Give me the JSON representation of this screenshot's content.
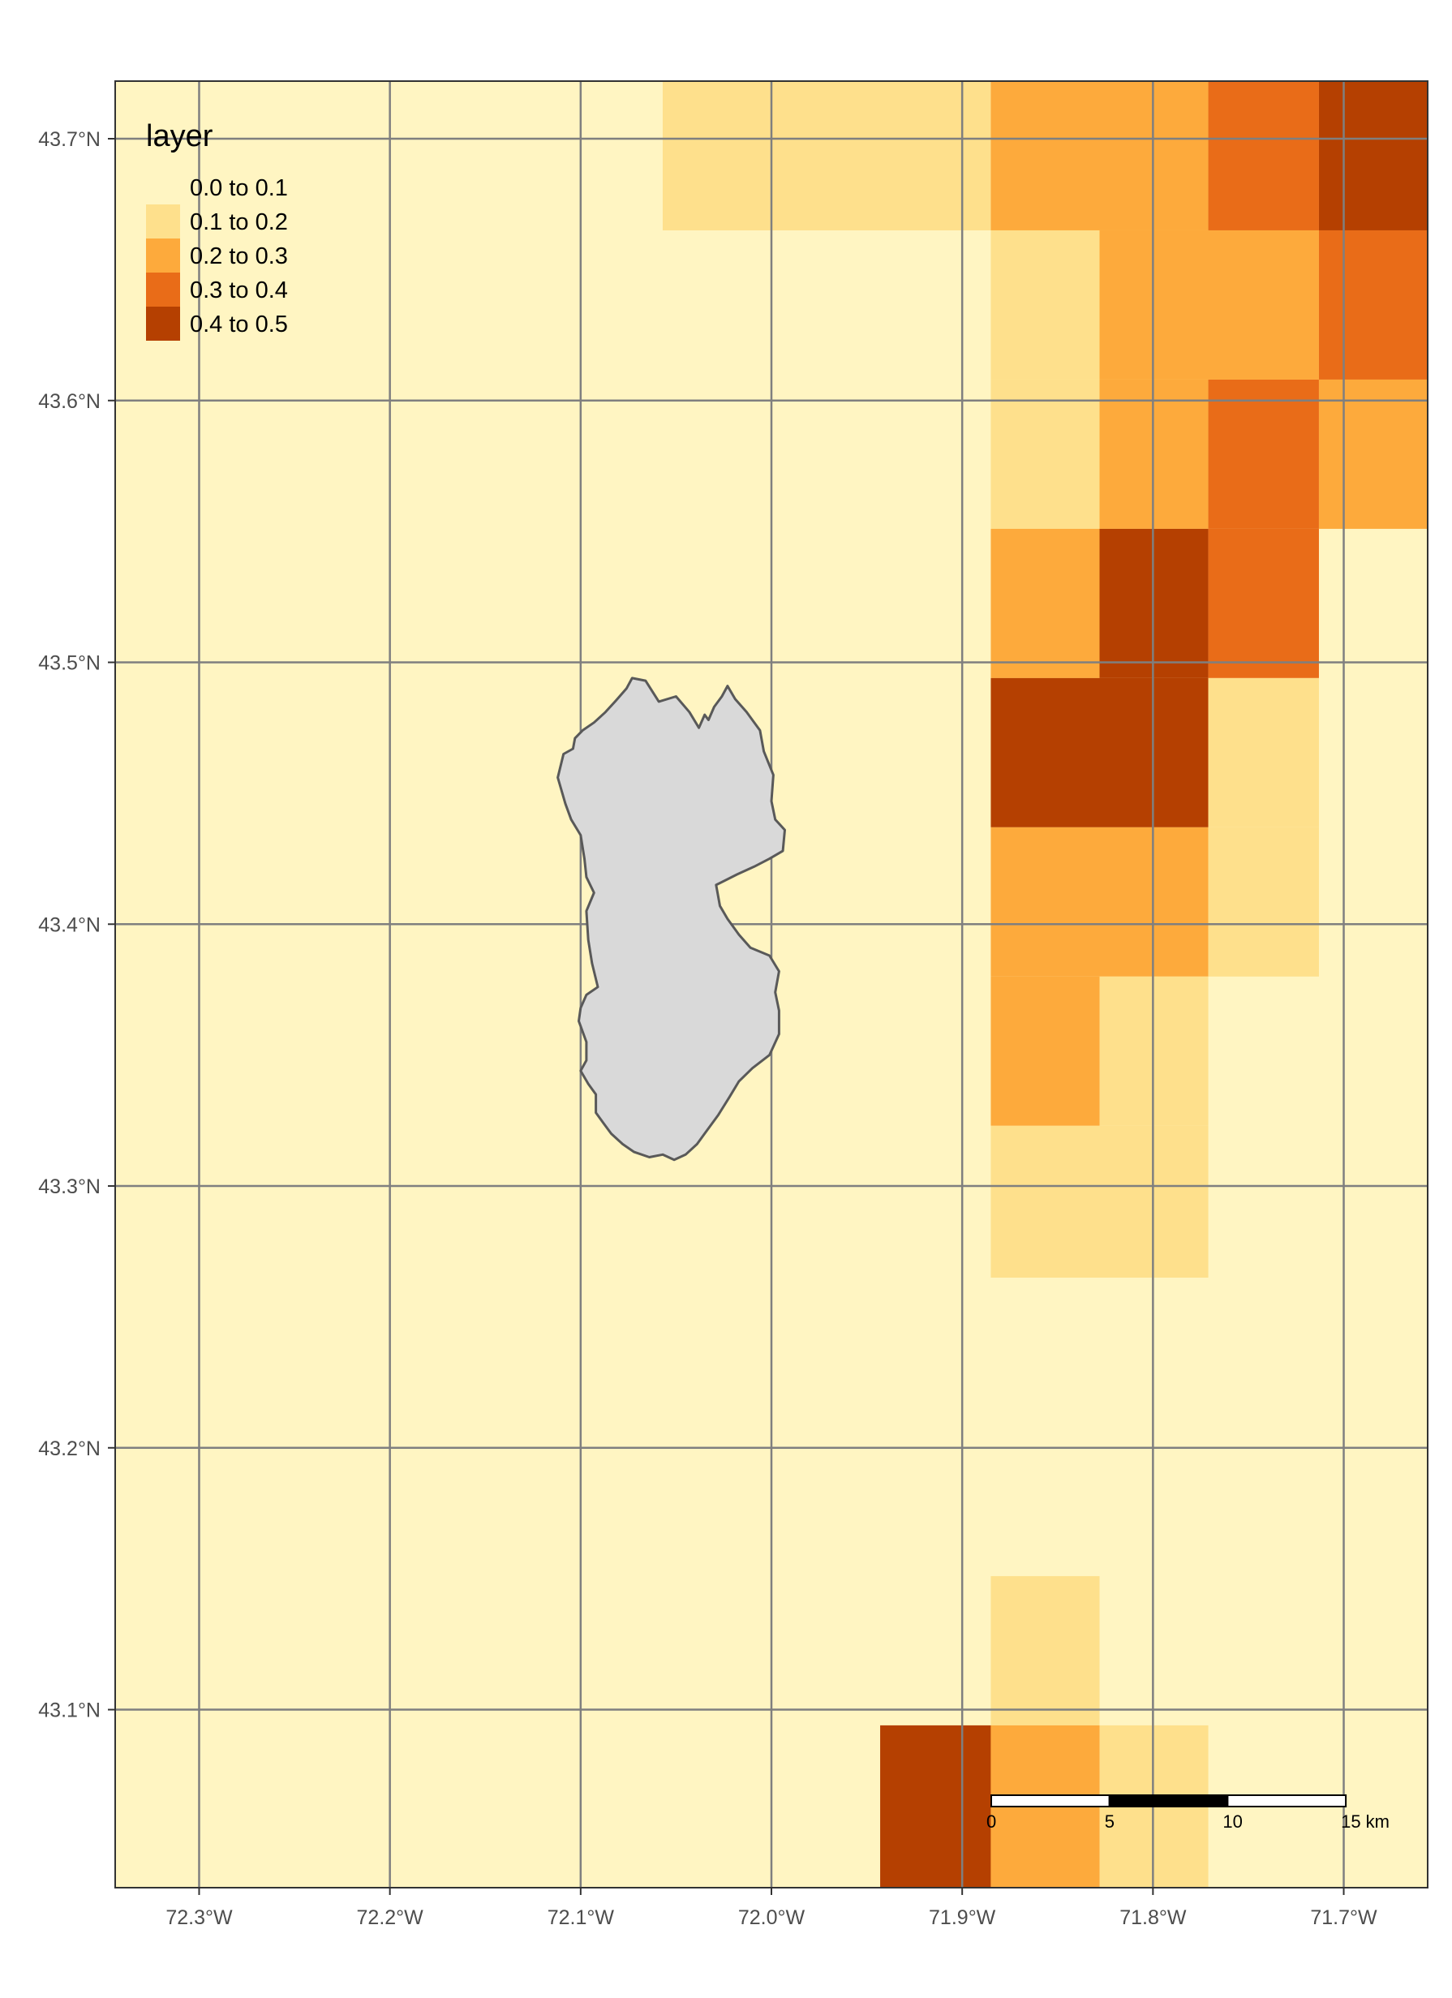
{
  "map": {
    "legend": {
      "title": "layer",
      "entries": [
        {
          "label": "0.0 to 0.1",
          "color": "#FFF5C2"
        },
        {
          "label": "0.1 to 0.2",
          "color": "#FEE08C"
        },
        {
          "label": "0.2 to 0.3",
          "color": "#FDAA3C"
        },
        {
          "label": "0.3 to 0.4",
          "color": "#E96C18"
        },
        {
          "label": "0.4 to 0.5",
          "color": "#B54001"
        }
      ]
    },
    "axes": {
      "x_ticks": [
        "72.3°W",
        "72.2°W",
        "72.1°W",
        "72.0°W",
        "71.9°W",
        "71.8°W",
        "71.7°W"
      ],
      "y_ticks": [
        "43.7°N",
        "43.6°N",
        "43.5°N",
        "43.4°N",
        "43.3°N",
        "43.2°N",
        "43.1°N"
      ],
      "x_values": [
        -72.3,
        -72.2,
        -72.1,
        -72.0,
        -71.9,
        -71.8,
        -71.7
      ],
      "y_values": [
        43.7,
        43.6,
        43.5,
        43.4,
        43.3,
        43.2,
        43.1
      ],
      "x_range": [
        -72.344,
        -71.656
      ],
      "y_range": [
        43.032,
        43.722
      ]
    },
    "raster": {
      "background_class": 0,
      "cells": [
        {
          "lon": [
            -72.057,
            -71.885
          ],
          "lat": [
            43.665,
            43.722
          ],
          "class": 1
        },
        {
          "lon": [
            -71.885,
            -71.771
          ],
          "lat": [
            43.665,
            43.722
          ],
          "class": 2
        },
        {
          "lon": [
            -71.771,
            -71.713
          ],
          "lat": [
            43.665,
            43.722
          ],
          "class": 3
        },
        {
          "lon": [
            -71.713,
            -71.656
          ],
          "lat": [
            43.665,
            43.722
          ],
          "class": 4
        },
        {
          "lon": [
            -71.885,
            -71.828
          ],
          "lat": [
            43.608,
            43.665
          ],
          "class": 1
        },
        {
          "lon": [
            -71.828,
            -71.713
          ],
          "lat": [
            43.608,
            43.665
          ],
          "class": 2
        },
        {
          "lon": [
            -71.713,
            -71.656
          ],
          "lat": [
            43.608,
            43.665
          ],
          "class": 3
        },
        {
          "lon": [
            -71.885,
            -71.828
          ],
          "lat": [
            43.551,
            43.608
          ],
          "class": 1
        },
        {
          "lon": [
            -71.828,
            -71.771
          ],
          "lat": [
            43.551,
            43.608
          ],
          "class": 2
        },
        {
          "lon": [
            -71.771,
            -71.713
          ],
          "lat": [
            43.551,
            43.608
          ],
          "class": 3
        },
        {
          "lon": [
            -71.713,
            -71.656
          ],
          "lat": [
            43.551,
            43.608
          ],
          "class": 2
        },
        {
          "lon": [
            -71.885,
            -71.828
          ],
          "lat": [
            43.494,
            43.551
          ],
          "class": 2
        },
        {
          "lon": [
            -71.828,
            -71.771
          ],
          "lat": [
            43.494,
            43.551
          ],
          "class": 4
        },
        {
          "lon": [
            -71.771,
            -71.713
          ],
          "lat": [
            43.494,
            43.551
          ],
          "class": 3
        },
        {
          "lon": [
            -71.885,
            -71.771
          ],
          "lat": [
            43.437,
            43.494
          ],
          "class": 4
        },
        {
          "lon": [
            -71.771,
            -71.713
          ],
          "lat": [
            43.437,
            43.494
          ],
          "class": 1
        },
        {
          "lon": [
            -71.885,
            -71.771
          ],
          "lat": [
            43.38,
            43.437
          ],
          "class": 2
        },
        {
          "lon": [
            -71.771,
            -71.713
          ],
          "lat": [
            43.38,
            43.437
          ],
          "class": 1
        },
        {
          "lon": [
            -71.885,
            -71.828
          ],
          "lat": [
            43.323,
            43.38
          ],
          "class": 2
        },
        {
          "lon": [
            -71.828,
            -71.771
          ],
          "lat": [
            43.323,
            43.38
          ],
          "class": 1
        },
        {
          "lon": [
            -71.885,
            -71.771
          ],
          "lat": [
            43.265,
            43.323
          ],
          "class": 1
        },
        {
          "lon": [
            -71.885,
            -71.828
          ],
          "lat": [
            43.094,
            43.151
          ],
          "class": 1
        },
        {
          "lon": [
            -71.943,
            -71.885
          ],
          "lat": [
            43.032,
            43.094
          ],
          "class": 4
        },
        {
          "lon": [
            -71.885,
            -71.828
          ],
          "lat": [
            43.032,
            43.094
          ],
          "class": 2
        },
        {
          "lon": [
            -71.828,
            -71.771
          ],
          "lat": [
            43.032,
            43.094
          ],
          "class": 1
        }
      ]
    },
    "watershed": {
      "fill": "#D9D9D9",
      "stroke": "#595959",
      "outline": [
        [
          -72.059,
          43.485
        ],
        [
          -72.066,
          43.493
        ],
        [
          -72.073,
          43.494
        ],
        [
          -72.076,
          43.49
        ],
        [
          -72.082,
          43.485
        ],
        [
          -72.087,
          43.481
        ],
        [
          -72.093,
          43.477
        ],
        [
          -72.099,
          43.474
        ],
        [
          -72.103,
          43.471
        ],
        [
          -72.104,
          43.467
        ],
        [
          -72.109,
          43.465
        ],
        [
          -72.112,
          43.456
        ],
        [
          -72.108,
          43.446
        ],
        [
          -72.105,
          43.44
        ],
        [
          -72.1,
          43.434
        ],
        [
          -72.098,
          43.425
        ],
        [
          -72.097,
          43.418
        ],
        [
          -72.093,
          43.412
        ],
        [
          -72.097,
          43.405
        ],
        [
          -72.096,
          43.394
        ],
        [
          -72.094,
          43.385
        ],
        [
          -72.091,
          43.376
        ],
        [
          -72.097,
          43.373
        ],
        [
          -72.1,
          43.368
        ],
        [
          -72.101,
          43.363
        ],
        [
          -72.097,
          43.355
        ],
        [
          -72.097,
          43.348
        ],
        [
          -72.1,
          43.344
        ],
        [
          -72.096,
          43.339
        ],
        [
          -72.092,
          43.335
        ],
        [
          -72.092,
          43.328
        ],
        [
          -72.088,
          43.324
        ],
        [
          -72.084,
          43.32
        ],
        [
          -72.078,
          43.316
        ],
        [
          -72.072,
          43.313
        ],
        [
          -72.064,
          43.311
        ],
        [
          -72.057,
          43.312
        ],
        [
          -72.051,
          43.31
        ],
        [
          -72.045,
          43.312
        ],
        [
          -72.039,
          43.316
        ],
        [
          -72.034,
          43.321
        ],
        [
          -72.028,
          43.327
        ],
        [
          -72.022,
          43.334
        ],
        [
          -72.017,
          43.34
        ],
        [
          -72.01,
          43.345
        ],
        [
          -72.001,
          43.35
        ],
        [
          -71.996,
          43.358
        ],
        [
          -71.996,
          43.367
        ],
        [
          -71.998,
          43.374
        ],
        [
          -71.996,
          43.382
        ],
        [
          -72.001,
          43.388
        ],
        [
          -72.011,
          43.391
        ],
        [
          -72.017,
          43.396
        ],
        [
          -72.023,
          43.402
        ],
        [
          -72.027,
          43.407
        ],
        [
          -72.029,
          43.415
        ],
        [
          -72.018,
          43.419
        ],
        [
          -72.009,
          43.422
        ],
        [
          -72.001,
          43.425
        ],
        [
          -71.994,
          43.428
        ],
        [
          -71.993,
          43.436
        ],
        [
          -71.998,
          43.44
        ],
        [
          -72.0,
          43.447
        ],
        [
          -71.999,
          43.457
        ],
        [
          -72.004,
          43.466
        ],
        [
          -72.006,
          43.474
        ],
        [
          -72.013,
          43.481
        ],
        [
          -72.019,
          43.486
        ],
        [
          -72.023,
          43.491
        ],
        [
          -72.026,
          43.487
        ],
        [
          -72.03,
          43.483
        ],
        [
          -72.033,
          43.478
        ],
        [
          -72.035,
          43.48
        ],
        [
          -72.038,
          43.475
        ],
        [
          -72.043,
          43.481
        ],
        [
          -72.05,
          43.487
        ],
        [
          -72.059,
          43.485
        ]
      ]
    },
    "scale_bar": {
      "labels": [
        "0",
        "5",
        "10",
        "15 km"
      ],
      "segments_km": [
        0,
        5,
        10,
        15
      ]
    }
  }
}
